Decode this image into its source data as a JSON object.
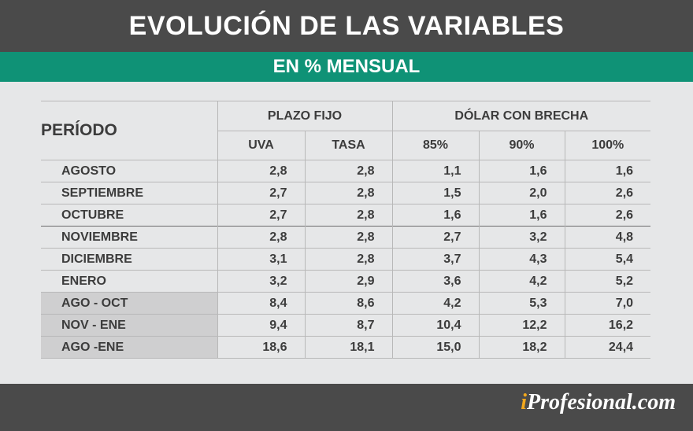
{
  "title": "EVOLUCIÓN DE LAS VARIABLES",
  "subtitle": "EN % MENSUAL",
  "table": {
    "period_header": "PERÍODO",
    "groups": [
      "PLAZO FIJO",
      "DÓLAR CON BRECHA"
    ],
    "columns": [
      "UVA",
      "TASA",
      "85%",
      "90%",
      "100%"
    ],
    "rows": [
      {
        "label": "AGOSTO",
        "values": [
          "2,8",
          "2,8",
          "1,1",
          "1,6",
          "1,6"
        ]
      },
      {
        "label": "SEPTIEMBRE",
        "values": [
          "2,7",
          "2,8",
          "1,5",
          "2,0",
          "2,6"
        ]
      },
      {
        "label": "OCTUBRE",
        "values": [
          "2,7",
          "2,8",
          "1,6",
          "1,6",
          "2,6"
        ]
      },
      {
        "label": "NOVIEMBRE",
        "values": [
          "2,8",
          "2,8",
          "2,7",
          "3,2",
          "4,8"
        ]
      },
      {
        "label": "DICIEMBRE",
        "values": [
          "3,1",
          "2,8",
          "3,7",
          "4,3",
          "5,4"
        ]
      },
      {
        "label": "ENERO",
        "values": [
          "3,2",
          "2,9",
          "3,6",
          "4,2",
          "5,2"
        ]
      },
      {
        "label": "AGO - OCT",
        "values": [
          "8,4",
          "8,6",
          "4,2",
          "5,3",
          "7,0"
        ]
      },
      {
        "label": "NOV - ENE",
        "values": [
          "9,4",
          "8,7",
          "10,4",
          "12,2",
          "16,2"
        ]
      },
      {
        "label": "AGO -ENE",
        "values": [
          "18,6",
          "18,1",
          "15,0",
          "18,2",
          "24,4"
        ]
      }
    ]
  },
  "brand": {
    "prefix": "i",
    "name": "Profesional.com"
  },
  "colors": {
    "header_bg": "#4a4a4a",
    "accent": "#0f9276",
    "brand_i": "#f2a81d"
  }
}
